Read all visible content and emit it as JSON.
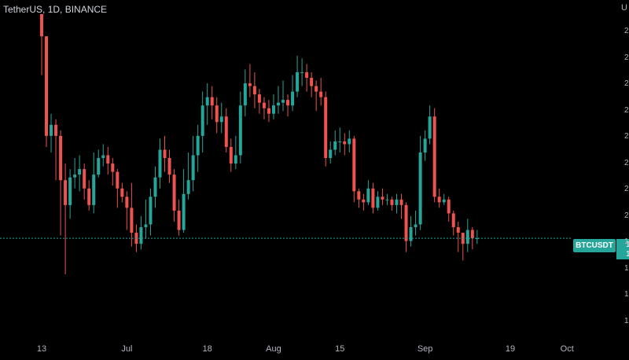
{
  "header": {
    "title": "TetherUS, 1D, BINANCE"
  },
  "ticker_badge": "BTCUSDT",
  "currency_label": "U",
  "price_badge_digits": [
    "1",
    "1"
  ],
  "yaxis_digits": [
    "2",
    "2",
    "2",
    "2",
    "2",
    "2",
    "2",
    "2",
    "1",
    "1",
    "1",
    "1"
  ],
  "colors": {
    "up": "#26a69a",
    "down": "#ef5350",
    "background": "#000000",
    "last_price_line": "#26a69a"
  },
  "xaxis": {
    "labels": [
      {
        "text": "13",
        "index": 0
      },
      {
        "text": "Jul",
        "index": 18
      },
      {
        "text": "18",
        "index": 35
      },
      {
        "text": "Aug",
        "index": 49
      },
      {
        "text": "15",
        "index": 63
      },
      {
        "text": "Sep",
        "index": 81
      },
      {
        "text": "19",
        "index": 99
      },
      {
        "text": "Oct",
        "index": 111
      }
    ]
  },
  "chart_data": {
    "type": "candlestick",
    "price_scale": {
      "min": 0,
      "max": 100,
      "note": "relative units; axis tick values are cut off in the screenshot"
    },
    "candles": [
      [
        100,
        92,
        100,
        78
      ],
      [
        92,
        56,
        92,
        52
      ],
      [
        56,
        60,
        64,
        50
      ],
      [
        60,
        56,
        62,
        40
      ],
      [
        56,
        40,
        58,
        20
      ],
      [
        40,
        31,
        46,
        6
      ],
      [
        31,
        41,
        44,
        26
      ],
      [
        41,
        42,
        48,
        37
      ],
      [
        42,
        44,
        49,
        36
      ],
      [
        44,
        37,
        46,
        33
      ],
      [
        37,
        31,
        40,
        29
      ],
      [
        31,
        42,
        50,
        28
      ],
      [
        42,
        48,
        51,
        41
      ],
      [
        48,
        49,
        53,
        45
      ],
      [
        49,
        46,
        52,
        42
      ],
      [
        46,
        43,
        48,
        38
      ],
      [
        43,
        37,
        44,
        30
      ],
      [
        37,
        34,
        39,
        32
      ],
      [
        34,
        30,
        36,
        22
      ],
      [
        30,
        21,
        39,
        16
      ],
      [
        21,
        17,
        24,
        14
      ],
      [
        17,
        23,
        27,
        15
      ],
      [
        23,
        24,
        33,
        19
      ],
      [
        24,
        34,
        37,
        20
      ],
      [
        34,
        41,
        45,
        30
      ],
      [
        41,
        51,
        55,
        37
      ],
      [
        51,
        48,
        56,
        43
      ],
      [
        48,
        42,
        51,
        39
      ],
      [
        42,
        29,
        44,
        25
      ],
      [
        29,
        22,
        33,
        20
      ],
      [
        22,
        35,
        44,
        21
      ],
      [
        35,
        40,
        50,
        33
      ],
      [
        40,
        49,
        56,
        36
      ],
      [
        49,
        56,
        60,
        43
      ],
      [
        56,
        67,
        72,
        50
      ],
      [
        67,
        70,
        75,
        60
      ],
      [
        70,
        67,
        74,
        62
      ],
      [
        67,
        61,
        70,
        57
      ],
      [
        61,
        63,
        68,
        57
      ],
      [
        63,
        52,
        66,
        50
      ],
      [
        52,
        46,
        55,
        43
      ],
      [
        46,
        49,
        56,
        44
      ],
      [
        49,
        67,
        72,
        46
      ],
      [
        67,
        75,
        80,
        63
      ],
      [
        75,
        74,
        82,
        70
      ],
      [
        74,
        71,
        79,
        66
      ],
      [
        71,
        68,
        73,
        64
      ],
      [
        68,
        66,
        70,
        62
      ],
      [
        66,
        64,
        69,
        61
      ],
      [
        64,
        67,
        71,
        62
      ],
      [
        67,
        68,
        74,
        64
      ],
      [
        68,
        69,
        76,
        65
      ],
      [
        69,
        67,
        71,
        63
      ],
      [
        67,
        72,
        78,
        65
      ],
      [
        72,
        79,
        85,
        70
      ],
      [
        79,
        79,
        84,
        74
      ],
      [
        79,
        77,
        82,
        72
      ],
      [
        77,
        74,
        79,
        70
      ],
      [
        74,
        72,
        76,
        65
      ],
      [
        72,
        70,
        77,
        67
      ],
      [
        70,
        48,
        72,
        45
      ],
      [
        48,
        51,
        54,
        46
      ],
      [
        51,
        54,
        58,
        49
      ],
      [
        54,
        54,
        59,
        50
      ],
      [
        54,
        53,
        57,
        49
      ],
      [
        53,
        55,
        58,
        50
      ],
      [
        55,
        36,
        56,
        32
      ],
      [
        36,
        33,
        37,
        30
      ],
      [
        33,
        32,
        35,
        29
      ],
      [
        32,
        37,
        40,
        31
      ],
      [
        37,
        30,
        39,
        28
      ],
      [
        30,
        34,
        36,
        29
      ],
      [
        34,
        33,
        37,
        31
      ],
      [
        33,
        33,
        35,
        31
      ],
      [
        33,
        31,
        34,
        29
      ],
      [
        31,
        33,
        35,
        28
      ],
      [
        33,
        31,
        35,
        26
      ],
      [
        31,
        18,
        32,
        14
      ],
      [
        18,
        23,
        27,
        16
      ],
      [
        23,
        24,
        29,
        20
      ],
      [
        24,
        50,
        56,
        22
      ],
      [
        50,
        55,
        58,
        47
      ],
      [
        55,
        63,
        67,
        53
      ],
      [
        63,
        34,
        66,
        32
      ],
      [
        34,
        32,
        37,
        30
      ],
      [
        32,
        33,
        35,
        31
      ],
      [
        33,
        28,
        34,
        25
      ],
      [
        28,
        23,
        29,
        20
      ],
      [
        23,
        21,
        25,
        14
      ],
      [
        21,
        17,
        20,
        11
      ],
      [
        17,
        22,
        26,
        14
      ],
      [
        22,
        19,
        23,
        15
      ],
      [
        19,
        19,
        22,
        17
      ]
    ],
    "last_price_line": 19
  }
}
